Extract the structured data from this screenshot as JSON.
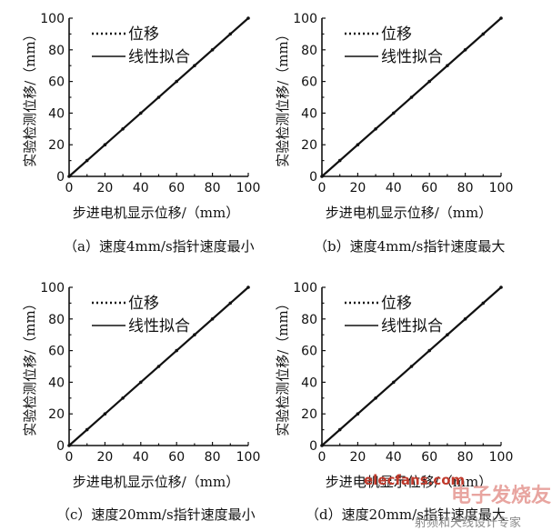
{
  "legend": {
    "series1": "位移",
    "series2": "线性拟合"
  },
  "axes": {
    "xlabel": "步进电机显示位移/（mm）",
    "ylabel": "实验检测位移/（mm）",
    "ticks": [
      "0",
      "20",
      "40",
      "60",
      "80",
      "100"
    ]
  },
  "panels": [
    {
      "caption": "（a）速度4mm/s指针速度最小"
    },
    {
      "caption": "（b）速度4mm/s指针速度最大"
    },
    {
      "caption": "（c）速度20mm/s指针速度最小"
    },
    {
      "caption": "（d）速度20mm/s指针速度最大"
    }
  ],
  "watermark": {
    "line1": "elecfans.com",
    "line2": "电子发烧友",
    "line3": "射频和天线设计专家"
  },
  "colors": {
    "ink": "#111111",
    "watermark_red": "#c0392b"
  },
  "chart_data": [
    {
      "type": "line",
      "xlabel": "步进电机显示位移/（mm）",
      "ylabel": "实验检测位移/（mm）",
      "xlim": [
        0,
        100
      ],
      "ylim": [
        0,
        100
      ],
      "grid": false,
      "legend_position": "top-left",
      "series": [
        {
          "name": "位移",
          "style": "dotted",
          "x": [
            0,
            10,
            20,
            30,
            40,
            50,
            60,
            70,
            80,
            90,
            100
          ],
          "y": [
            0,
            10,
            20,
            30,
            40,
            50,
            60,
            70,
            80,
            90,
            100
          ]
        },
        {
          "name": "线性拟合",
          "style": "solid",
          "x": [
            0,
            100
          ],
          "y": [
            0,
            100
          ]
        }
      ]
    },
    {
      "type": "line",
      "xlabel": "步进电机显示位移/（mm）",
      "ylabel": "实验检测位移/（mm）",
      "xlim": [
        0,
        100
      ],
      "ylim": [
        0,
        100
      ],
      "grid": false,
      "legend_position": "top-left",
      "series": [
        {
          "name": "位移",
          "style": "dotted",
          "x": [
            0,
            10,
            20,
            30,
            40,
            50,
            60,
            70,
            80,
            90,
            100
          ],
          "y": [
            0,
            10,
            20,
            30,
            40,
            50,
            60,
            70,
            80,
            90,
            100
          ]
        },
        {
          "name": "线性拟合",
          "style": "solid",
          "x": [
            0,
            100
          ],
          "y": [
            0,
            100
          ]
        }
      ]
    },
    {
      "type": "line",
      "xlabel": "步进电机显示位移/（mm）",
      "ylabel": "实验检测位移/（mm）",
      "xlim": [
        0,
        100
      ],
      "ylim": [
        0,
        100
      ],
      "grid": false,
      "legend_position": "top-left",
      "series": [
        {
          "name": "位移",
          "style": "dotted",
          "x": [
            0,
            10,
            20,
            30,
            40,
            50,
            60,
            70,
            80,
            90,
            100
          ],
          "y": [
            0,
            10,
            20,
            30,
            40,
            50,
            60,
            70,
            80,
            90,
            100
          ]
        },
        {
          "name": "线性拟合",
          "style": "solid",
          "x": [
            0,
            100
          ],
          "y": [
            0,
            100
          ]
        }
      ]
    },
    {
      "type": "line",
      "xlabel": "步进电机显示位移/（mm）",
      "ylabel": "实验检测位移/（mm）",
      "xlim": [
        0,
        100
      ],
      "ylim": [
        0,
        100
      ],
      "grid": false,
      "legend_position": "top-left",
      "series": [
        {
          "name": "位移",
          "style": "dotted",
          "x": [
            0,
            10,
            20,
            30,
            40,
            50,
            60,
            70,
            80,
            90,
            100
          ],
          "y": [
            0,
            10,
            20,
            30,
            40,
            50,
            60,
            70,
            80,
            90,
            100
          ]
        },
        {
          "name": "线性拟合",
          "style": "solid",
          "x": [
            0,
            100
          ],
          "y": [
            0,
            100
          ]
        }
      ]
    }
  ]
}
